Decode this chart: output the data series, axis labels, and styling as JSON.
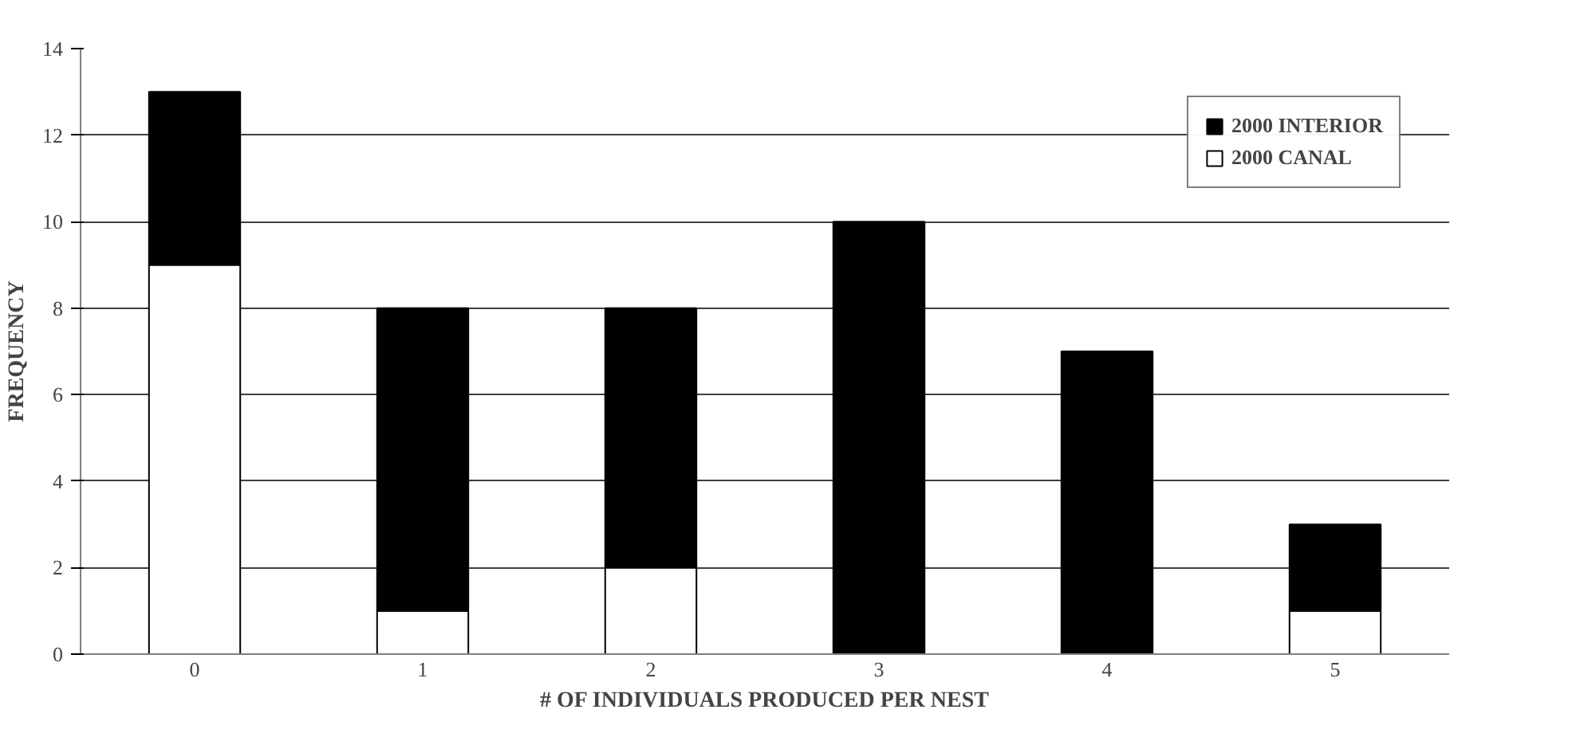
{
  "chart_data": {
    "type": "bar",
    "stacked": true,
    "xlabel": "# OF INDIVIDUALS PRODUCED PER NEST",
    "ylabel": "FREQUENCY",
    "categories": [
      "0",
      "1",
      "2",
      "3",
      "4",
      "5"
    ],
    "series": [
      {
        "name": "2000 CANAL",
        "color": "#ffffff",
        "values": [
          9,
          1,
          2,
          0,
          0,
          1
        ]
      },
      {
        "name": "2000 INTERIOR",
        "color": "#000000",
        "values": [
          4,
          7,
          6,
          10,
          7,
          2
        ]
      }
    ],
    "ylim": [
      0,
      14
    ],
    "yticks": [
      0,
      2,
      4,
      6,
      8,
      10,
      12,
      14
    ],
    "grid": "y",
    "legend": "top right"
  }
}
